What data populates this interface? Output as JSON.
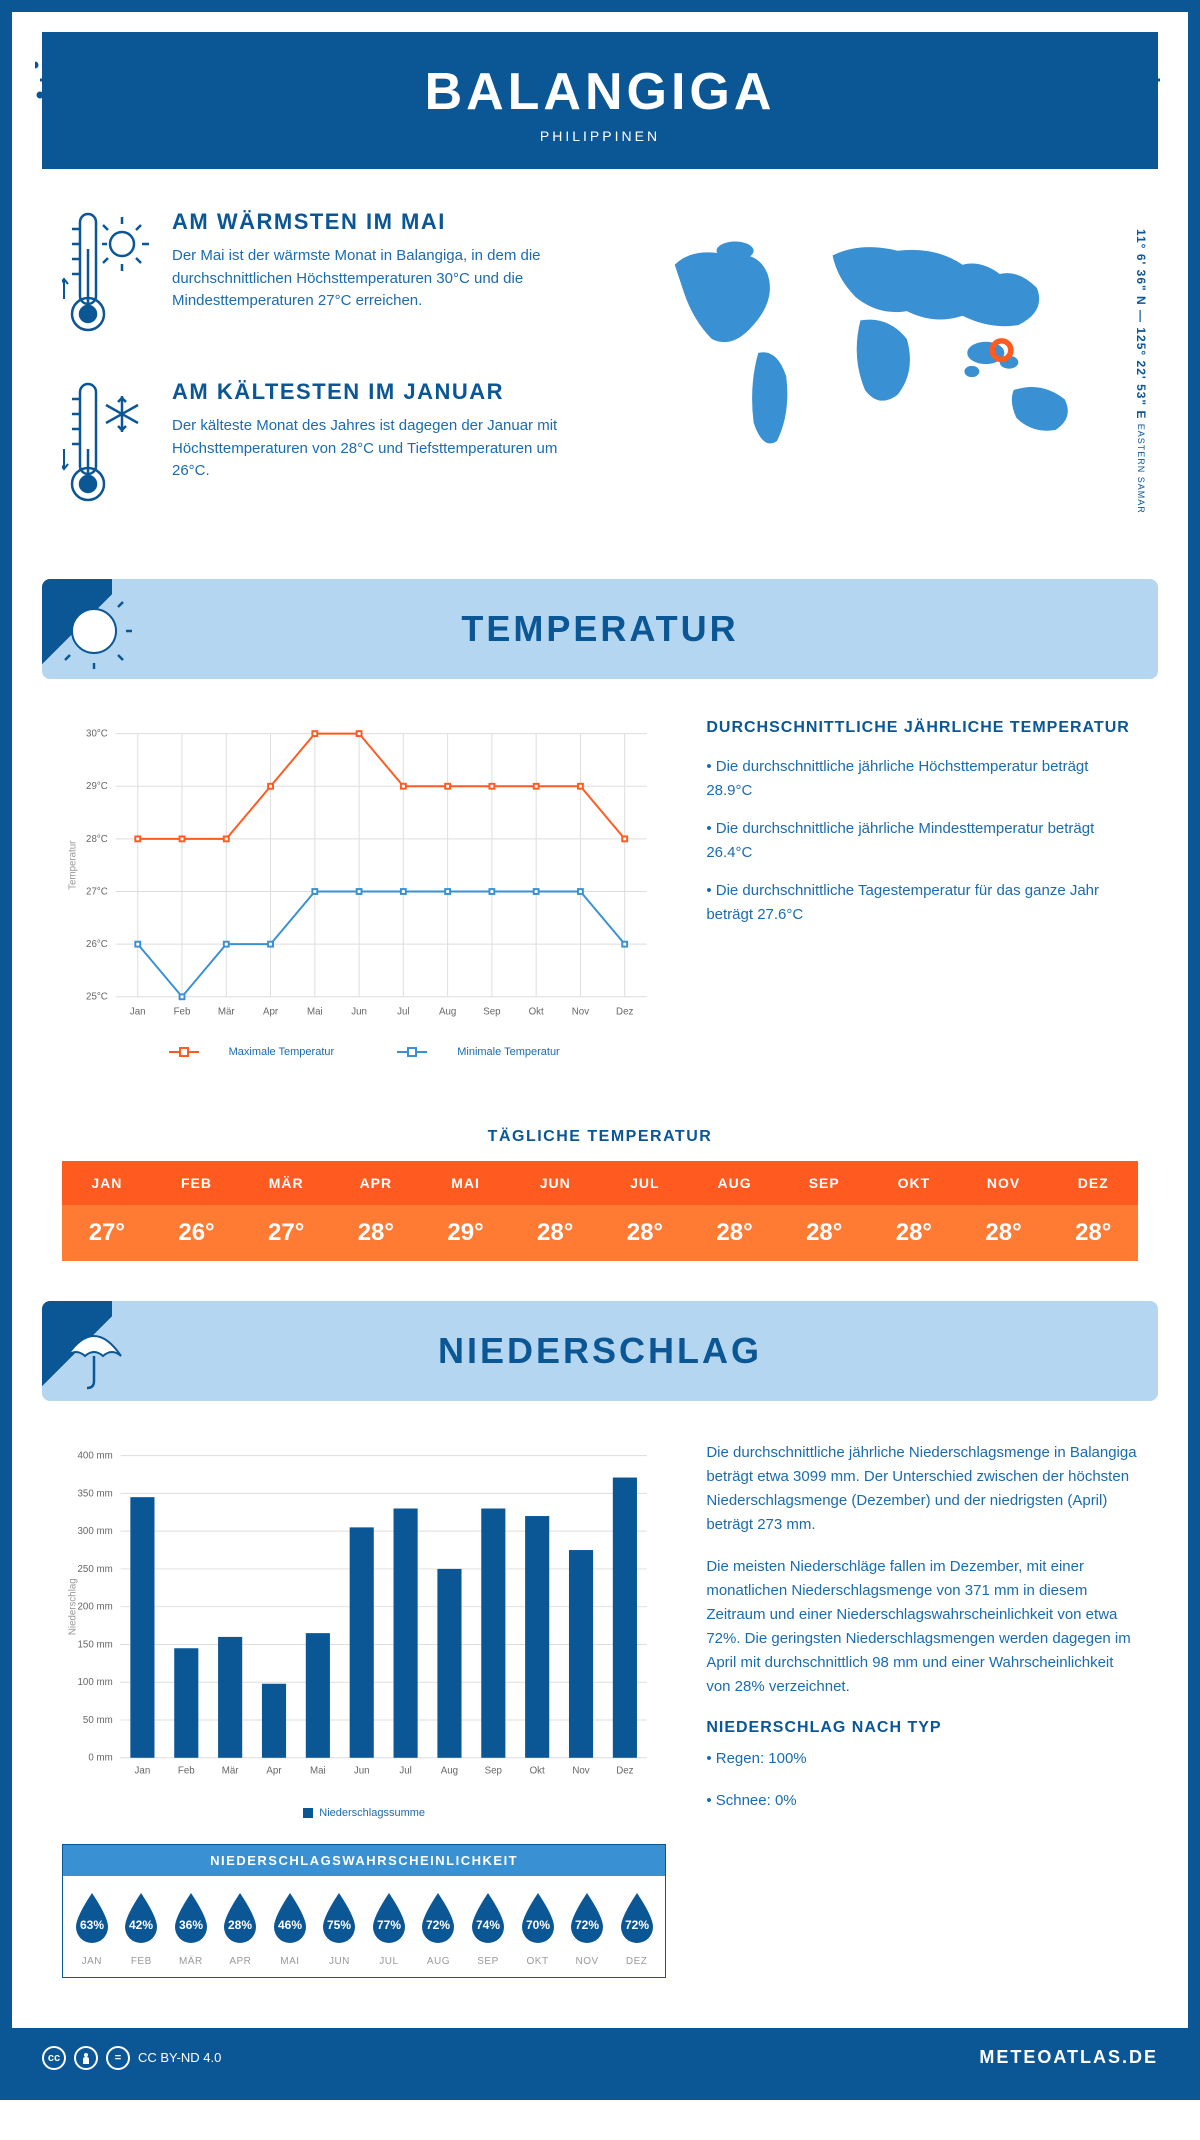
{
  "header": {
    "city": "BALANGIGA",
    "country": "PHILIPPINEN"
  },
  "coords": {
    "text": "11° 6' 36\" N — 125° 22' 53\" E",
    "region": "EASTERN SAMAR"
  },
  "wind_color": "#0b5695",
  "facts": {
    "warm": {
      "title": "AM WÄRMSTEN IM MAI",
      "text": "Der Mai ist der wärmste Monat in Balangiga, in dem die durchschnittlichen Höchsttemperaturen 30°C und die Mindesttemperaturen 27°C erreichen."
    },
    "cold": {
      "title": "AM KÄLTESTEN IM JANUAR",
      "text": "Der kälteste Monat des Jahres ist dagegen der Januar mit Höchsttemperaturen von 28°C und Tiefsttemperaturen um 26°C."
    }
  },
  "sections": {
    "temp": "TEMPERATUR",
    "precip": "NIEDERSCHLAG"
  },
  "temp_chart": {
    "type": "line",
    "months": [
      "Jan",
      "Feb",
      "Mär",
      "Apr",
      "Mai",
      "Jun",
      "Jul",
      "Aug",
      "Sep",
      "Okt",
      "Nov",
      "Dez"
    ],
    "y_label": "Temperatur",
    "y_ticks": [
      "25°C",
      "26°C",
      "27°C",
      "28°C",
      "29°C",
      "30°C"
    ],
    "ylim": [
      25,
      30
    ],
    "max_color": "#ff5a1f",
    "min_color": "#3990d2",
    "grid_color": "#dddddd",
    "max_label": "Maximale Temperatur",
    "min_label": "Minimale Temperatur",
    "max": [
      28,
      28,
      28,
      29,
      30,
      30,
      29,
      29,
      29,
      29,
      29,
      28
    ],
    "min": [
      26,
      25,
      26,
      26,
      27,
      27,
      27,
      27,
      27,
      27,
      27,
      26
    ],
    "line_width": 2,
    "marker_size": 5
  },
  "temp_text": {
    "title": "DURCHSCHNITTLICHE JÄHRLICHE TEMPERATUR",
    "p1": "• Die durchschnittliche jährliche Höchsttemperatur beträgt 28.9°C",
    "p2": "• Die durchschnittliche jährliche Mindesttemperatur beträgt 26.4°C",
    "p3": "• Die durchschnittliche Tagestemperatur für das ganze Jahr beträgt 27.6°C"
  },
  "daily": {
    "title": "TÄGLICHE TEMPERATUR",
    "months": [
      "JAN",
      "FEB",
      "MÄR",
      "APR",
      "MAI",
      "JUN",
      "JUL",
      "AUG",
      "SEP",
      "OKT",
      "NOV",
      "DEZ"
    ],
    "values": [
      "27°",
      "26°",
      "27°",
      "28°",
      "29°",
      "28°",
      "28°",
      "28°",
      "28°",
      "28°",
      "28°",
      "28°"
    ],
    "head_bg": "#ff5a1f",
    "val_bg": "#ff7a33"
  },
  "precip_chart": {
    "type": "bar",
    "months": [
      "Jan",
      "Feb",
      "Mär",
      "Apr",
      "Mai",
      "Jun",
      "Jul",
      "Aug",
      "Sep",
      "Okt",
      "Nov",
      "Dez"
    ],
    "y_label": "Niederschlag",
    "y_ticks": [
      "0 mm",
      "50 mm",
      "100 mm",
      "150 mm",
      "200 mm",
      "250 mm",
      "300 mm",
      "350 mm",
      "400 mm"
    ],
    "ylim": [
      0,
      400
    ],
    "values": [
      345,
      145,
      160,
      98,
      165,
      305,
      330,
      250,
      330,
      320,
      275,
      371
    ],
    "bar_color": "#0b5695",
    "grid_color": "#dddddd",
    "legend": "Niederschlagssumme",
    "bar_width": 0.55
  },
  "precip_text": {
    "p1": "Die durchschnittliche jährliche Niederschlagsmenge in Balangiga beträgt etwa 3099 mm. Der Unterschied zwischen der höchsten Niederschlagsmenge (Dezember) und der niedrigsten (April) beträgt 273 mm.",
    "p2": "Die meisten Niederschläge fallen im Dezember, mit einer monatlichen Niederschlagsmenge von 371 mm in diesem Zeitraum und einer Niederschlagswahrscheinlichkeit von etwa 72%. Die geringsten Niederschlagsmengen werden dagegen im April mit durchschnittlich 98 mm und einer Wahrscheinlichkeit von 28% verzeichnet.",
    "type_title": "NIEDERSCHLAG NACH TYP",
    "type1": "• Regen: 100%",
    "type2": "• Schnee: 0%"
  },
  "prob": {
    "title": "NIEDERSCHLAGSWAHRSCHEINLICHKEIT",
    "months": [
      "JAN",
      "FEB",
      "MÄR",
      "APR",
      "MAI",
      "JUN",
      "JUL",
      "AUG",
      "SEP",
      "OKT",
      "NOV",
      "DEZ"
    ],
    "values": [
      "63%",
      "42%",
      "36%",
      "28%",
      "46%",
      "75%",
      "77%",
      "72%",
      "74%",
      "70%",
      "72%",
      "72%"
    ],
    "drop_color": "#0b5695"
  },
  "footer": {
    "license": "CC BY-ND 4.0",
    "brand": "METEOATLAS.DE"
  }
}
